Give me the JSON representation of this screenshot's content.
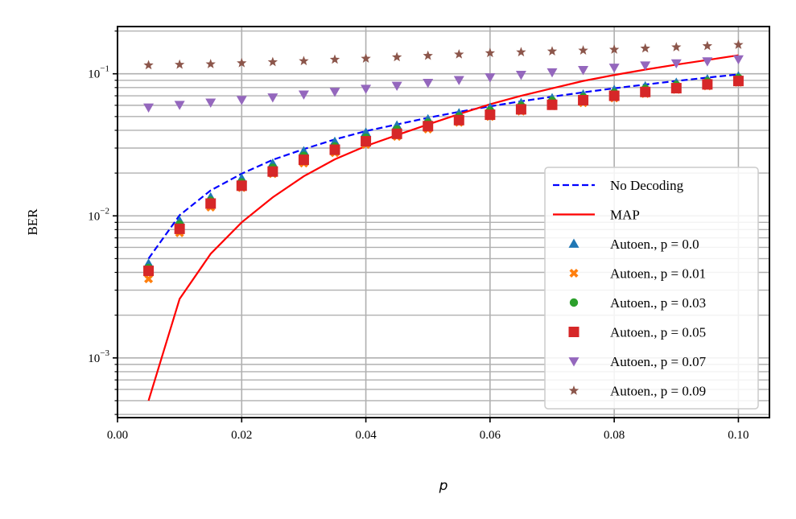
{
  "chart_data": {
    "type": "line",
    "title": "",
    "xlabel": "p",
    "ylabel": "BER",
    "xlim": [
      0.0,
      0.105
    ],
    "ylim": [
      0.00038,
      0.215
    ],
    "yscale": "log",
    "grid": true,
    "legend_position": "lower-right",
    "x_ticks": [
      0.0,
      0.02,
      0.04,
      0.06,
      0.08,
      0.1
    ],
    "x_tick_labels": [
      "0.00",
      "0.02",
      "0.04",
      "0.06",
      "0.08",
      "0.10"
    ],
    "y_ticks": [
      0.001,
      0.01,
      0.1
    ],
    "y_tick_labels": [
      {
        "base": "10",
        "exp": "−3"
      },
      {
        "base": "10",
        "exp": "−2"
      },
      {
        "base": "10",
        "exp": "−1"
      }
    ],
    "x": [
      0.005,
      0.01,
      0.015,
      0.02,
      0.025,
      0.03,
      0.035,
      0.04,
      0.045,
      0.05,
      0.055,
      0.06,
      0.065,
      0.07,
      0.075,
      0.08,
      0.085,
      0.09,
      0.095,
      0.1
    ],
    "series": [
      {
        "name": "No Decoding",
        "style": "dashed",
        "color": "#0000ff",
        "values": [
          0.005,
          0.0101,
          0.0151,
          0.0198,
          0.0248,
          0.0295,
          0.0345,
          0.0395,
          0.044,
          0.049,
          0.054,
          0.059,
          0.064,
          0.069,
          0.074,
          0.079,
          0.084,
          0.089,
          0.094,
          0.099
        ]
      },
      {
        "name": "MAP",
        "style": "solid",
        "color": "#ff0000",
        "values": [
          0.0005,
          0.0026,
          0.0054,
          0.009,
          0.0135,
          0.019,
          0.025,
          0.031,
          0.037,
          0.044,
          0.052,
          0.061,
          0.07,
          0.079,
          0.089,
          0.098,
          0.107,
          0.116,
          0.125,
          0.135
        ]
      },
      {
        "name": "Autoen., p = 0.0",
        "marker": "triangle-up",
        "color": "#1f77b4",
        "values": [
          0.0046,
          0.0092,
          0.0135,
          0.0183,
          0.0233,
          0.0285,
          0.0332,
          0.0385,
          0.0432,
          0.0478,
          0.0527,
          0.0577,
          0.0622,
          0.0672,
          0.0715,
          0.0768,
          0.0817,
          0.0865,
          0.0915,
          0.096
        ]
      },
      {
        "name": "Autoen., p = 0.01",
        "marker": "x",
        "color": "#ff7f0e",
        "values": [
          0.0036,
          0.0076,
          0.0115,
          0.0158,
          0.0198,
          0.0235,
          0.0278,
          0.0318,
          0.0362,
          0.0408,
          0.0455,
          0.05,
          0.0545,
          0.0595,
          0.0625,
          0.0675,
          0.0725,
          0.0775,
          0.082,
          0.087
        ]
      },
      {
        "name": "Autoen., p = 0.03",
        "marker": "circle",
        "color": "#2ca02c",
        "values": [
          0.0043,
          0.0087,
          0.0128,
          0.0172,
          0.0218,
          0.0265,
          0.0308,
          0.0355,
          0.0405,
          0.0452,
          0.05,
          0.055,
          0.0595,
          0.0645,
          0.0685,
          0.0735,
          0.0785,
          0.0835,
          0.0885,
          0.0935
        ]
      },
      {
        "name": "Autoen., p = 0.05",
        "marker": "square",
        "color": "#d62728",
        "values": [
          0.0041,
          0.0081,
          0.0122,
          0.0163,
          0.0205,
          0.0248,
          0.0292,
          0.0335,
          0.0378,
          0.0428,
          0.0472,
          0.0515,
          0.0562,
          0.0605,
          0.0652,
          0.07,
          0.0745,
          0.0792,
          0.0842,
          0.089
        ]
      },
      {
        "name": "Autoen., p = 0.07",
        "marker": "triangle-down",
        "color": "#9467bd",
        "values": [
          0.058,
          0.0605,
          0.0628,
          0.0655,
          0.0682,
          0.0715,
          0.0748,
          0.0785,
          0.0825,
          0.0865,
          0.0905,
          0.0945,
          0.0985,
          0.1025,
          0.1065,
          0.1105,
          0.1145,
          0.1185,
          0.1225,
          0.1265
        ]
      },
      {
        "name": "Autoen., p = 0.09",
        "marker": "star",
        "color": "#8c564b",
        "values": [
          0.115,
          0.116,
          0.117,
          0.119,
          0.121,
          0.123,
          0.126,
          0.128,
          0.131,
          0.134,
          0.137,
          0.14,
          0.142,
          0.144,
          0.146,
          0.148,
          0.151,
          0.154,
          0.157,
          0.16
        ]
      }
    ]
  }
}
